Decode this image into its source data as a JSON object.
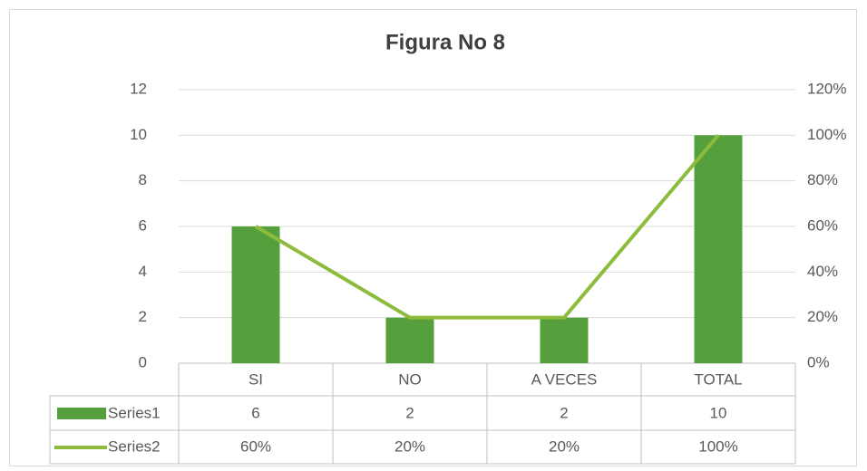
{
  "chart_data": {
    "type": "bar",
    "title": "Figura No 8",
    "categories": [
      "SI",
      "NO",
      "A VECES",
      "TOTAL"
    ],
    "series": [
      {
        "name": "Series1",
        "type": "bar",
        "color": "#55a03c",
        "values": [
          6,
          2,
          2,
          10
        ]
      },
      {
        "name": "Series2",
        "type": "line",
        "axis": "y2",
        "color": "#8dbb3c",
        "values": [
          60,
          20,
          20,
          100
        ],
        "value_labels": [
          "60%",
          "20%",
          "20%",
          "100%"
        ]
      }
    ],
    "ylim": [
      0,
      12
    ],
    "yticks": [
      0,
      2,
      4,
      6,
      8,
      10,
      12
    ],
    "y2lim": [
      0,
      120
    ],
    "y2ticks": [
      {
        "value": 0,
        "label": "0%"
      },
      {
        "value": 20,
        "label": "20%"
      },
      {
        "value": 40,
        "label": "40%"
      },
      {
        "value": 60,
        "label": "60%"
      },
      {
        "value": 80,
        "label": "80%"
      },
      {
        "value": 100,
        "label": "100%"
      },
      {
        "value": 120,
        "label": "120%"
      }
    ],
    "grid": true
  }
}
